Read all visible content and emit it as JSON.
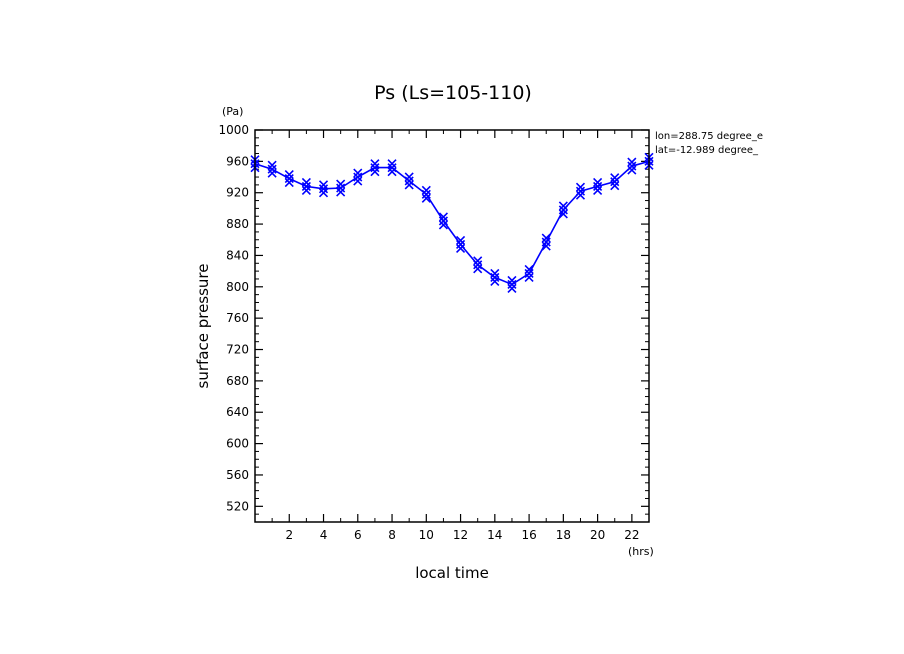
{
  "chart_data": {
    "type": "line",
    "title": "Ps (Ls=105-110)",
    "xlabel": "local time",
    "ylabel": "surface pressure",
    "x_unit": "(hrs)",
    "y_unit": "(Pa)",
    "xlim": [
      0,
      23
    ],
    "ylim": [
      500,
      1000
    ],
    "x_ticks": [
      2,
      4,
      6,
      8,
      10,
      12,
      14,
      16,
      18,
      20,
      22
    ],
    "y_ticks": [
      520,
      560,
      600,
      640,
      680,
      720,
      760,
      800,
      840,
      880,
      920,
      960,
      1000
    ],
    "annotations": [
      "lon=288.75 degree_e",
      "lat=-12.989 degree_"
    ],
    "series": [
      {
        "color": "#0000ff",
        "marker": "x",
        "x": [
          0,
          1,
          2,
          3,
          4,
          5,
          6,
          7,
          8,
          9,
          10,
          11,
          12,
          13,
          14,
          15,
          16,
          17,
          18,
          19,
          20,
          21,
          22,
          23
        ],
        "values": [
          957,
          950,
          938,
          928,
          925,
          926,
          940,
          952,
          952,
          935,
          918,
          884,
          854,
          828,
          812,
          803,
          817,
          857,
          898,
          922,
          928,
          934,
          954,
          960
        ]
      }
    ]
  }
}
